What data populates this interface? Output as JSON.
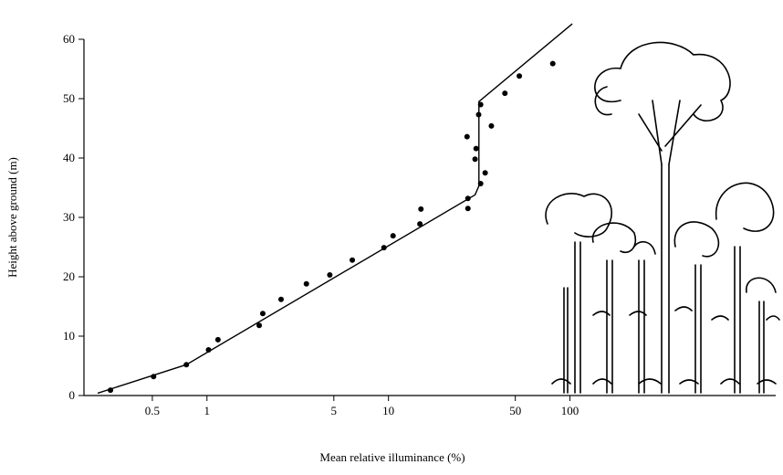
{
  "chart_data": {
    "type": "scatter",
    "xlabel": "Mean relative illuminance (%)",
    "ylabel": "Height above ground (m)",
    "xlog": true,
    "xlim": [
      0.21,
      1360
    ],
    "ylim": [
      0,
      60
    ],
    "xticks": [
      0.5,
      1,
      5,
      10,
      50,
      100
    ],
    "yticks": [
      0,
      10,
      20,
      30,
      40,
      50,
      60
    ],
    "series": [
      {
        "type": "scatter",
        "color": "#000000",
        "x": [
          0.294,
          0.508,
          0.77,
          1.02,
          1.15,
          1.94,
          2.03,
          2.56,
          3.53,
          4.75,
          6.32,
          9.44,
          10.6,
          14.9,
          15.1,
          27.4,
          27.4,
          30.4,
          30.0,
          27.1,
          31.4,
          32.2,
          32.2,
          34.1,
          36.9,
          43.8,
          52.6,
          80.4
        ],
        "values": [
          0.9,
          3.2,
          5.2,
          7.7,
          9.4,
          11.8,
          13.8,
          16.2,
          18.8,
          20.3,
          22.8,
          24.9,
          26.9,
          28.9,
          31.4,
          31.5,
          33.2,
          41.6,
          39.8,
          43.6,
          47.3,
          49.0,
          35.7,
          37.5,
          45.4,
          50.9,
          53.8,
          55.9
        ]
      },
      {
        "type": "line",
        "color": "#000000",
        "x": [
          0.25,
          0.77,
          30.0,
          31.5,
          31.5,
          103
        ],
        "values": [
          0.4,
          5.2,
          33.8,
          35.3,
          49.5,
          62.6
        ]
      }
    ]
  }
}
